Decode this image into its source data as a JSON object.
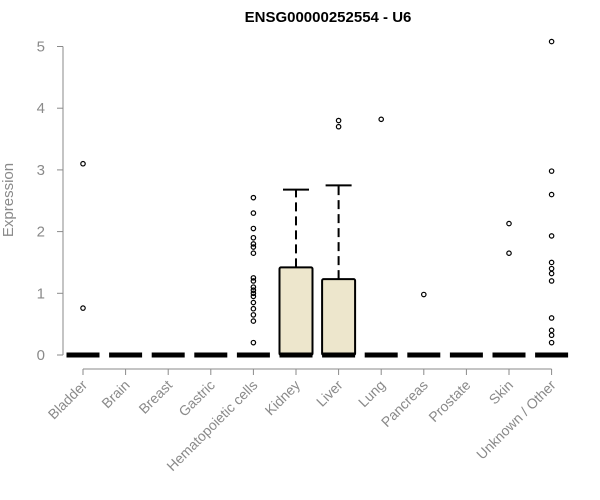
{
  "chart_data": {
    "type": "box",
    "title": "ENSG00000252554 - U6",
    "ylabel": "Expression",
    "xlabel": "",
    "ylim": [
      0,
      5.2
    ],
    "yticks": [
      "0",
      "1",
      "2",
      "3",
      "4",
      "5"
    ],
    "box_fill": "#ede6cc",
    "categories": [
      "Bladder",
      "Brain",
      "Breast",
      "Gastric",
      "Hematopoietic cells",
      "Kidney",
      "Liver",
      "Lung",
      "Pancreas",
      "Prostate",
      "Skin",
      "Unknown / Other"
    ],
    "boxes": [
      {
        "q1": 0,
        "median": 0,
        "q3": 0,
        "whisker_high": 0,
        "outliers": [
          0.76,
          3.1
        ]
      },
      {
        "q1": 0,
        "median": 0,
        "q3": 0,
        "whisker_high": 0,
        "outliers": []
      },
      {
        "q1": 0,
        "median": 0,
        "q3": 0,
        "whisker_high": 0,
        "outliers": []
      },
      {
        "q1": 0,
        "median": 0,
        "q3": 0,
        "whisker_high": 0,
        "outliers": []
      },
      {
        "q1": 0,
        "median": 0,
        "q3": 0,
        "whisker_high": 0,
        "outliers": [
          0.2,
          0.55,
          0.65,
          0.75,
          0.85,
          0.95,
          1.0,
          1.05,
          1.1,
          1.2,
          1.25,
          1.65,
          1.75,
          1.8,
          1.9,
          2.05,
          2.3,
          2.55
        ]
      },
      {
        "q1": 0,
        "median": 0,
        "q3": 1.42,
        "whisker_high": 2.68,
        "outliers": []
      },
      {
        "q1": 0,
        "median": 0,
        "q3": 1.23,
        "whisker_high": 2.75,
        "outliers": [
          3.7,
          3.8
        ]
      },
      {
        "q1": 0,
        "median": 0,
        "q3": 0,
        "whisker_high": 0,
        "outliers": [
          3.82
        ]
      },
      {
        "q1": 0,
        "median": 0,
        "q3": 0,
        "whisker_high": 0,
        "outliers": [
          0.98
        ]
      },
      {
        "q1": 0,
        "median": 0,
        "q3": 0,
        "whisker_high": 0,
        "outliers": []
      },
      {
        "q1": 0,
        "median": 0,
        "q3": 0,
        "whisker_high": 0,
        "outliers": [
          1.65,
          2.13
        ]
      },
      {
        "q1": 0,
        "median": 0,
        "q3": 0,
        "whisker_high": 0,
        "outliers": [
          0.2,
          0.32,
          0.4,
          0.6,
          1.2,
          1.32,
          1.4,
          1.5,
          1.93,
          2.6,
          2.98,
          5.08
        ]
      }
    ]
  }
}
